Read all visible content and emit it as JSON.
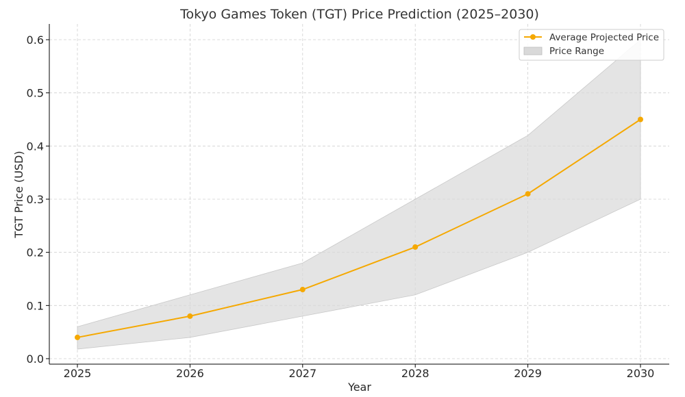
{
  "chart_data": {
    "type": "line",
    "title": "Tokyo Games Token (TGT) Price Prediction (2025–2030)",
    "xlabel": "Year",
    "ylabel": "TGT Price (USD)",
    "categories": [
      "2025",
      "2026",
      "2027",
      "2028",
      "2029",
      "2030"
    ],
    "yticks": [
      "0.0",
      "0.1",
      "0.2",
      "0.3",
      "0.4",
      "0.5",
      "0.6"
    ],
    "ylim": [
      0,
      0.63
    ],
    "grid": true,
    "legend_position": "top-right",
    "series": [
      {
        "name": "Average Projected Price",
        "values": [
          0.04,
          0.08,
          0.13,
          0.21,
          0.31,
          0.45
        ],
        "color": "#f5a800"
      }
    ],
    "range": {
      "name": "Price Range",
      "low": [
        0.018,
        0.04,
        0.08,
        0.12,
        0.2,
        0.3
      ],
      "high": [
        0.06,
        0.12,
        0.18,
        0.3,
        0.42,
        0.6
      ],
      "color": "#d9d9d9"
    }
  }
}
